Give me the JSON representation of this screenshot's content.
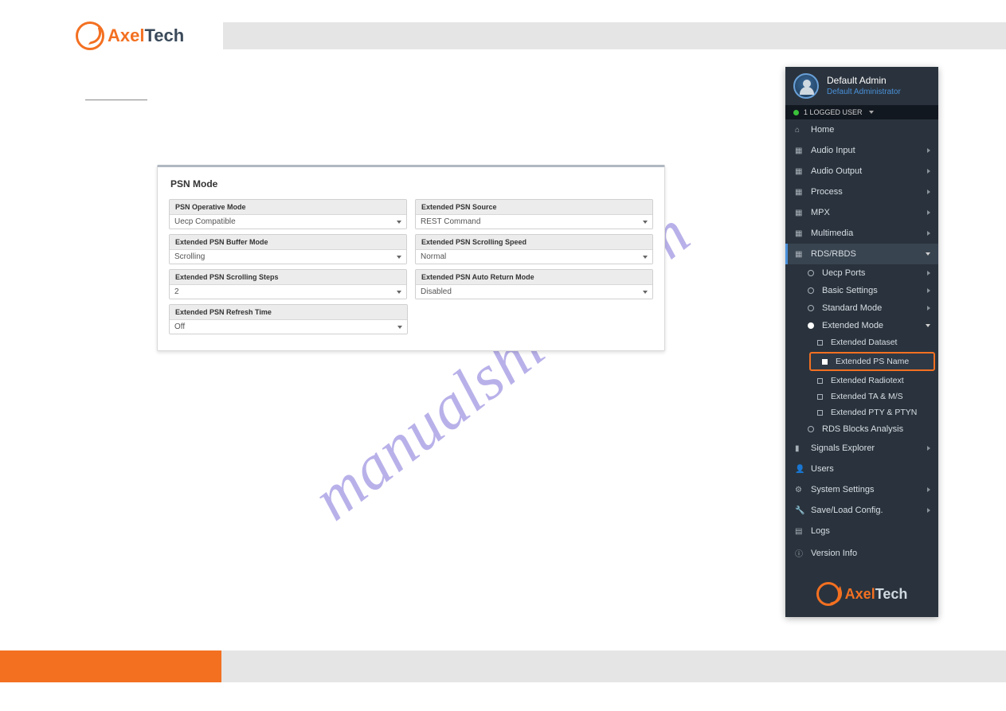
{
  "brand": {
    "part1": "Axel",
    "part2": "Tech"
  },
  "watermark": "manualshive.com",
  "form": {
    "title": "PSN Mode",
    "fields": {
      "operative_mode": {
        "label": "PSN Operative Mode",
        "value": "Uecp Compatible"
      },
      "source": {
        "label": "Extended PSN Source",
        "value": "REST Command"
      },
      "buffer_mode": {
        "label": "Extended PSN Buffer Mode",
        "value": "Scrolling"
      },
      "scroll_speed": {
        "label": "Extended PSN Scrolling Speed",
        "value": "Normal"
      },
      "scroll_steps": {
        "label": "Extended PSN Scrolling Steps",
        "value": "2"
      },
      "auto_return": {
        "label": "Extended PSN Auto Return Mode",
        "value": "Disabled"
      },
      "refresh_time": {
        "label": "Extended PSN Refresh Time",
        "value": "Off"
      }
    }
  },
  "sidebar": {
    "user": {
      "name": "Default Admin",
      "role": "Default Administrator"
    },
    "status": "1 LOGGED USER",
    "items": {
      "home": "Home",
      "audio_in": "Audio Input",
      "audio_out": "Audio Output",
      "process": "Process",
      "mpx": "MPX",
      "multimedia": "Multimedia",
      "rds": "RDS/RBDS",
      "signals": "Signals Explorer",
      "users": "Users",
      "syssettings": "System Settings",
      "saveload": "Save/Load Config.",
      "logs": "Logs",
      "version": "Version Info"
    },
    "rds_sub": {
      "uecp": "Uecp Ports",
      "basic": "Basic Settings",
      "standard": "Standard Mode",
      "extended": "Extended Mode",
      "blocks": "RDS Blocks Analysis"
    },
    "ext_sub": {
      "dataset": "Extended Dataset",
      "psname": "Extended PS Name",
      "radiotext": "Extended Radiotext",
      "tams": "Extended TA & M/S",
      "pty": "Extended PTY & PTYN"
    }
  },
  "colors": {
    "accent_orange": "#f37021",
    "sidebar_bg": "#2a333d",
    "link_blue": "#4a90d9",
    "panel_border": "#b0b8c0",
    "field_header": "#ececec",
    "status_green": "#3ac23a",
    "watermark": "#8a7edb"
  }
}
